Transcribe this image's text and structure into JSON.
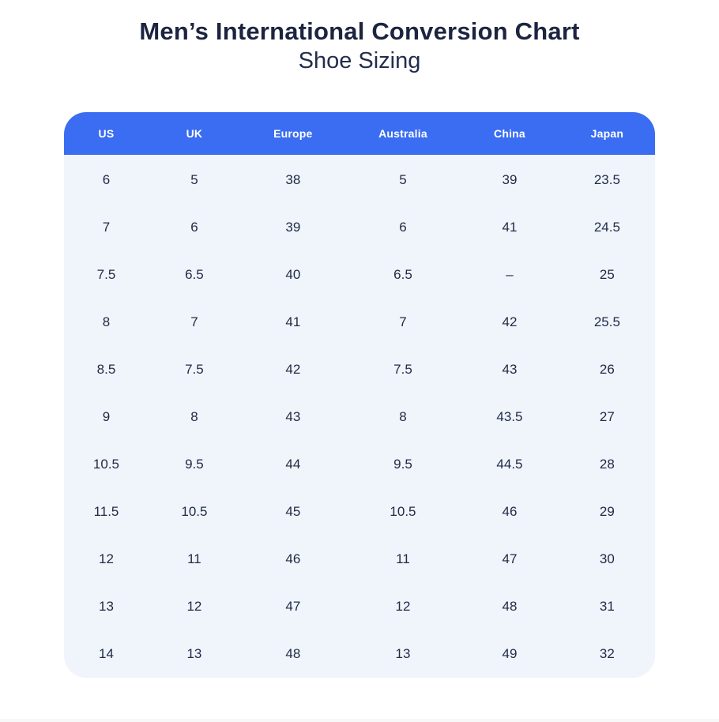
{
  "page": {
    "title": "Men’s International Conversion Chart",
    "subtitle": "Shoe Sizing"
  },
  "colors": {
    "header_bg": "#3a6df2",
    "header_text": "#ffffff",
    "body_bg": "#f0f4fb",
    "cell_text": "#1f2a44",
    "title_text": "#1c2440"
  },
  "table": {
    "columns": [
      "US",
      "UK",
      "Europe",
      "Australia",
      "China",
      "Japan"
    ],
    "rows": [
      [
        "6",
        "5",
        "38",
        "5",
        "39",
        "23.5"
      ],
      [
        "7",
        "6",
        "39",
        "6",
        "41",
        "24.5"
      ],
      [
        "7.5",
        "6.5",
        "40",
        "6.5",
        "–",
        "25"
      ],
      [
        "8",
        "7",
        "41",
        "7",
        "42",
        "25.5"
      ],
      [
        "8.5",
        "7.5",
        "42",
        "7.5",
        "43",
        "26"
      ],
      [
        "9",
        "8",
        "43",
        "8",
        "43.5",
        "27"
      ],
      [
        "10.5",
        "9.5",
        "44",
        "9.5",
        "44.5",
        "28"
      ],
      [
        "11.5",
        "10.5",
        "45",
        "10.5",
        "46",
        "29"
      ],
      [
        "12",
        "11",
        "46",
        "11",
        "47",
        "30"
      ],
      [
        "13",
        "12",
        "47",
        "12",
        "48",
        "31"
      ],
      [
        "14",
        "13",
        "48",
        "13",
        "49",
        "32"
      ]
    ]
  },
  "chart_data": {
    "type": "table",
    "title": "Men’s International Conversion Chart",
    "subtitle": "Shoe Sizing",
    "columns": [
      "US",
      "UK",
      "Europe",
      "Australia",
      "China",
      "Japan"
    ],
    "rows": [
      [
        "6",
        "5",
        "38",
        "5",
        "39",
        "23.5"
      ],
      [
        "7",
        "6",
        "39",
        "6",
        "41",
        "24.5"
      ],
      [
        "7.5",
        "6.5",
        "40",
        "6.5",
        "–",
        "25"
      ],
      [
        "8",
        "7",
        "41",
        "7",
        "42",
        "25.5"
      ],
      [
        "8.5",
        "7.5",
        "42",
        "7.5",
        "43",
        "26"
      ],
      [
        "9",
        "8",
        "43",
        "8",
        "43.5",
        "27"
      ],
      [
        "10.5",
        "9.5",
        "44",
        "9.5",
        "44.5",
        "28"
      ],
      [
        "11.5",
        "10.5",
        "45",
        "10.5",
        "46",
        "29"
      ],
      [
        "12",
        "11",
        "46",
        "11",
        "47",
        "30"
      ],
      [
        "13",
        "12",
        "47",
        "12",
        "48",
        "31"
      ],
      [
        "14",
        "13",
        "48",
        "13",
        "49",
        "32"
      ]
    ]
  }
}
